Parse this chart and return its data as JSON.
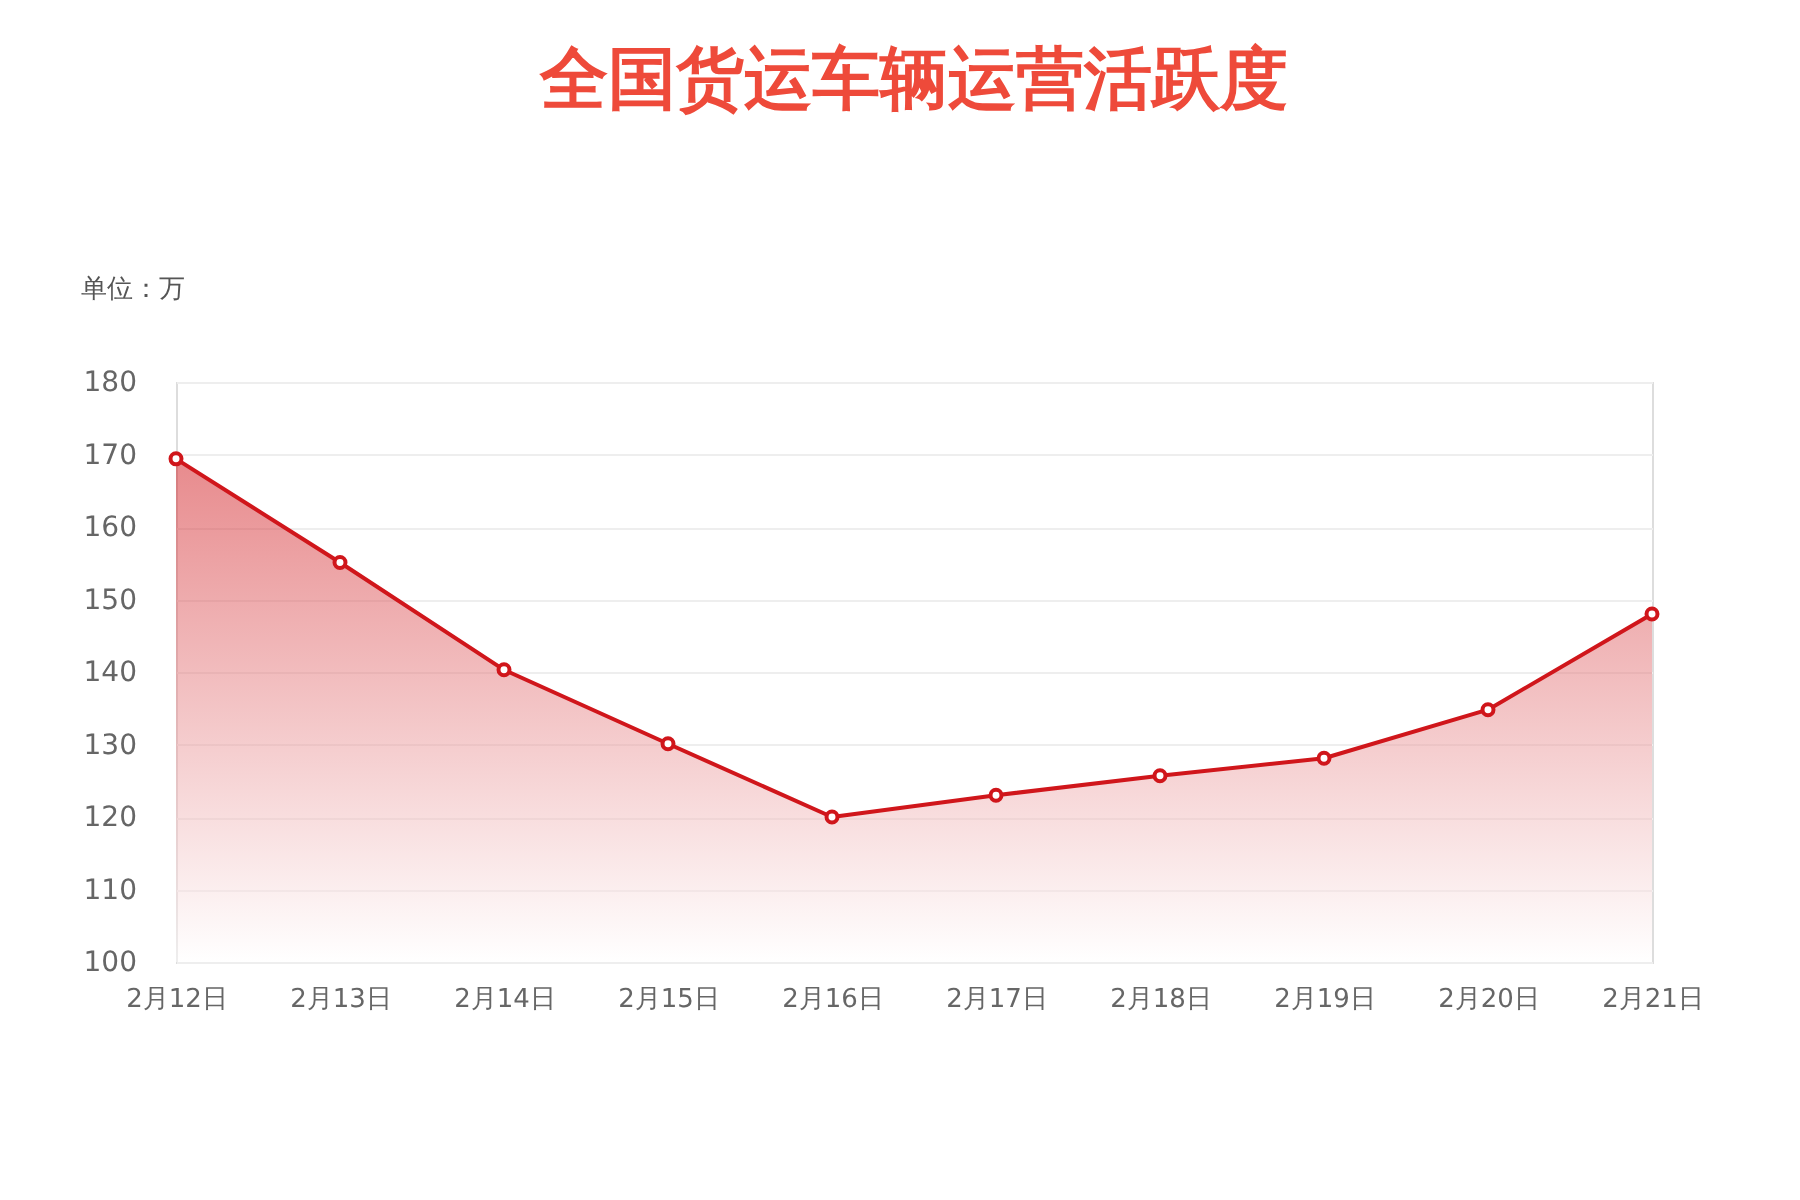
{
  "chart_data": {
    "type": "area",
    "title": "全国货运车辆运营活跃度",
    "ylabel": "单位：万",
    "categories": [
      "2月12日",
      "2月13日",
      "2月14日",
      "2月15日",
      "2月16日",
      "2月17日",
      "2月18日",
      "2月19日",
      "2月20日",
      "2月21日"
    ],
    "series": [
      {
        "color": "#d0161b",
        "values": [
          169.4,
          155.1,
          140.3,
          130.1,
          120.0,
          123.0,
          125.7,
          128.1,
          134.8,
          148.0
        ]
      }
    ],
    "ylim": [
      100,
      180
    ],
    "yticks": [
      100,
      110,
      120,
      130,
      140,
      150,
      160,
      170,
      180
    ],
    "grid": "y",
    "marker": "circle",
    "line_style": "solid"
  }
}
